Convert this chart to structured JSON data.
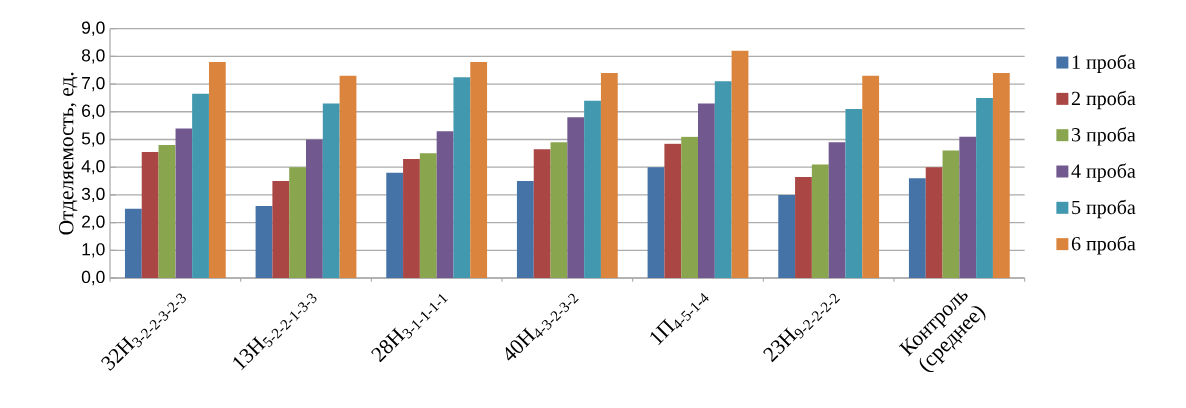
{
  "chart_data": {
    "type": "bar",
    "ylabel": "Отделяемость, ед.",
    "categories": [
      "32Н$_{3-2-2-3-2-3}$",
      "13Н$_{5-2-2-1-3-3}$",
      "28Н$_{3-1-1-1-1}$",
      "40Н$_{4-3-2-3-2}$",
      "1П$_{4-5-1-4}$",
      "23Н$_{9-2-2-2-2}$",
      "Контроль (среднее)"
    ],
    "series": [
      {
        "name": "1 проба",
        "color": "#4572a7",
        "values": [
          2.5,
          2.6,
          3.8,
          3.5,
          4.0,
          3.0,
          3.6
        ]
      },
      {
        "name": "2 проба",
        "color": "#aa4643",
        "values": [
          4.55,
          3.5,
          4.3,
          4.65,
          4.85,
          3.65,
          4.0
        ]
      },
      {
        "name": "3 проба",
        "color": "#89a54e",
        "values": [
          4.8,
          4.0,
          4.5,
          4.9,
          5.1,
          4.1,
          4.6
        ]
      },
      {
        "name": "4 проба",
        "color": "#71588f",
        "values": [
          5.4,
          5.0,
          5.3,
          5.8,
          6.3,
          4.9,
          5.1
        ]
      },
      {
        "name": "5 проба",
        "color": "#4198af",
        "values": [
          6.65,
          6.3,
          7.25,
          6.4,
          7.1,
          6.1,
          6.5
        ]
      },
      {
        "name": "6 проба",
        "color": "#db843d",
        "values": [
          7.8,
          7.3,
          7.8,
          7.4,
          8.2,
          7.3,
          7.4
        ]
      }
    ],
    "ylim": [
      0,
      9
    ],
    "yticks": [
      {
        "value": 0,
        "label": "0,0"
      },
      {
        "value": 1,
        "label": "1,0"
      },
      {
        "value": 2,
        "label": "2,0"
      },
      {
        "value": 3,
        "label": "3,0"
      },
      {
        "value": 4,
        "label": "4,0"
      },
      {
        "value": 5,
        "label": "5,0"
      },
      {
        "value": 6,
        "label": "6,0"
      },
      {
        "value": 7,
        "label": "7,0"
      },
      {
        "value": 8,
        "label": "8,0"
      },
      {
        "value": 9,
        "label": "9,0"
      }
    ],
    "grid": "y",
    "legend": "right"
  }
}
